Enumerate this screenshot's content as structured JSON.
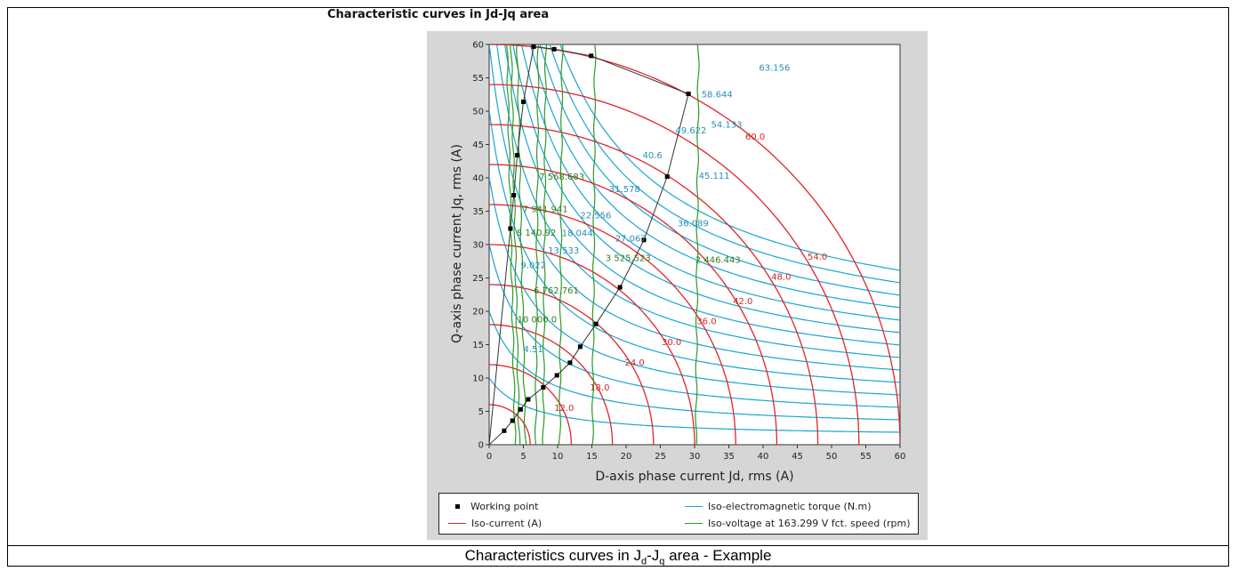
{
  "header": {
    "title": "Characteristic curves in Jd-Jq area"
  },
  "caption": {
    "text": "Characteristics curves in J",
    "sub1": "d",
    "mid": "-J",
    "sub2": "q",
    "tail": " area - Example"
  },
  "legend": {
    "working_point": "Working point",
    "iso_current": "Iso-current (A)",
    "iso_torque": "Iso-electromagnetic torque (N.m)",
    "iso_voltage": "Iso-voltage at 163.299 V fct. speed (rpm)"
  },
  "colors": {
    "current": "#e0242b",
    "torque": "#1aa6cf",
    "voltage": "#2b9a27",
    "working": "#000000",
    "current_label": "#cc2a2a",
    "torque_label": "#2a8fb8",
    "voltage_label": "#2e7d1e"
  },
  "chart_data": {
    "type": "line",
    "title": "Characteristic curves in Jd-Jq area",
    "xlabel": "D-axis phase current Jd, rms (A)",
    "ylabel": "Q-axis phase current Jq, rms (A)",
    "xlim": [
      0,
      60
    ],
    "ylim": [
      0,
      60
    ],
    "xticks": [
      0,
      5,
      10,
      15,
      20,
      25,
      30,
      35,
      40,
      45,
      50,
      55,
      60
    ],
    "yticks": [
      0,
      5,
      10,
      15,
      20,
      25,
      30,
      35,
      40,
      45,
      50,
      55,
      60
    ],
    "grid": false,
    "legend_placement": "bottom",
    "iso_current": {
      "levels": [
        6,
        12,
        18,
        24,
        30,
        36,
        42,
        48,
        54,
        60
      ],
      "labels": [
        {
          "text": "12.0",
          "x": 9.5,
          "y": 5.6
        },
        {
          "text": "18.0",
          "x": 14.7,
          "y": 8.7
        },
        {
          "text": "24.0",
          "x": 19.8,
          "y": 12.4
        },
        {
          "text": "30.0",
          "x": 25.2,
          "y": 15.5
        },
        {
          "text": "36.0",
          "x": 30.3,
          "y": 18.6
        },
        {
          "text": "42.0",
          "x": 35.6,
          "y": 21.6
        },
        {
          "text": "48.0",
          "x": 41.2,
          "y": 25.3
        },
        {
          "text": "54.0",
          "x": 46.5,
          "y": 28.3
        },
        {
          "text": "60.0",
          "x": 37.4,
          "y": 46.3
        }
      ]
    },
    "iso_torque": {
      "levels": [
        4.51,
        9.022,
        13.533,
        18.044,
        22.556,
        27.067,
        31.578,
        36.089,
        40.6,
        45.111,
        49.622,
        54.133,
        58.644,
        63.156
      ],
      "labels": [
        {
          "text": "4.51",
          "x": 5.0,
          "y": 14.4
        },
        {
          "text": "9.022",
          "x": 4.6,
          "y": 27.0
        },
        {
          "text": "13.533",
          "x": 8.6,
          "y": 29.2
        },
        {
          "text": "18.044",
          "x": 10.6,
          "y": 31.8
        },
        {
          "text": "22.556",
          "x": 13.3,
          "y": 34.5
        },
        {
          "text": "27.067",
          "x": 18.4,
          "y": 31.0
        },
        {
          "text": "31.578",
          "x": 17.5,
          "y": 38.4
        },
        {
          "text": "36.089",
          "x": 27.5,
          "y": 33.3
        },
        {
          "text": "40.6",
          "x": 22.4,
          "y": 43.5
        },
        {
          "text": "45.111",
          "x": 30.6,
          "y": 40.4
        },
        {
          "text": "49.622",
          "x": 27.2,
          "y": 47.2
        },
        {
          "text": "54.133",
          "x": 32.4,
          "y": 48.1
        },
        {
          "text": "58.644",
          "x": 31.0,
          "y": 52.6
        },
        {
          "text": "63.156",
          "x": 39.4,
          "y": 56.6
        }
      ]
    },
    "iso_voltage": {
      "speeds": [
        10000.0,
        8140.92,
        7941.941,
        7568.683,
        6762.761,
        3525.523,
        2446.443
      ],
      "jd_positions": [
        3.8,
        4.4,
        5.3,
        6.8,
        7.9,
        10.3,
        15.1,
        30.2
      ],
      "labels": [
        {
          "text": "10 000.0",
          "x": 4.1,
          "y": 18.9
        },
        {
          "text": "8 140.92",
          "x": 4.0,
          "y": 31.9
        },
        {
          "text": "7 941.941",
          "x": 4.9,
          "y": 35.4
        },
        {
          "text": "7 568.683",
          "x": 7.3,
          "y": 40.3
        },
        {
          "text": "6 762.761",
          "x": 6.5,
          "y": 23.2
        },
        {
          "text": "3 525.523",
          "x": 17.0,
          "y": 28.1
        },
        {
          "text": "2 446.443",
          "x": 30.1,
          "y": 27.8
        }
      ]
    },
    "working_points": {
      "mtpa": [
        [
          0,
          0
        ],
        [
          2.2,
          2.1
        ],
        [
          3.4,
          3.6
        ],
        [
          4.6,
          5.3
        ],
        [
          5.7,
          6.8
        ],
        [
          7.9,
          8.6
        ],
        [
          9.9,
          10.4
        ],
        [
          11.8,
          12.3
        ],
        [
          13.3,
          14.7
        ],
        [
          15.6,
          18.1
        ],
        [
          19.1,
          23.6
        ],
        [
          22.6,
          30.7
        ],
        [
          26.0,
          40.2
        ],
        [
          29.1,
          52.6
        ]
      ],
      "upper": [
        [
          29.1,
          52.6
        ],
        [
          14.9,
          58.3
        ],
        [
          9.5,
          59.3
        ],
        [
          6.5,
          59.7
        ]
      ],
      "flux": [
        [
          6.5,
          59.7
        ],
        [
          5.0,
          51.4
        ],
        [
          4.1,
          43.4
        ],
        [
          3.6,
          37.4
        ],
        [
          3.1,
          32.4
        ],
        [
          0,
          0
        ]
      ]
    }
  }
}
